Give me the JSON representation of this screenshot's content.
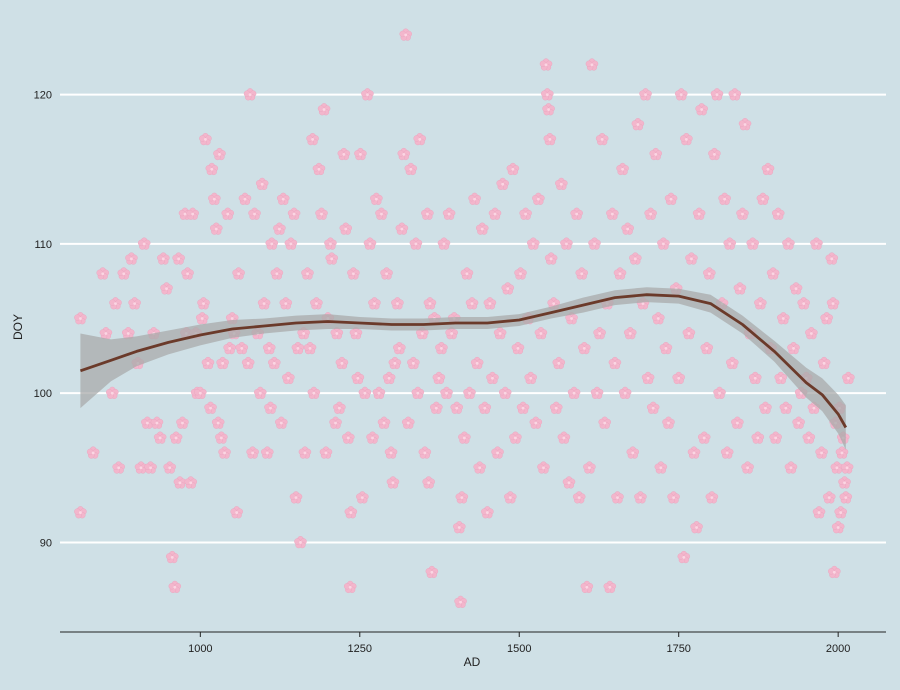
{
  "colors": {
    "background": "#cfe0e6",
    "grid": "#ffffff",
    "points": "#f3b6cc",
    "smooth_line": "#6b3a2a",
    "confidence_band": "#a9abab"
  },
  "icons": {
    "point_marker": "cherry-blossom-icon"
  },
  "chart_data": {
    "type": "scatter",
    "title": "",
    "xlabel": "AD",
    "ylabel": "DOY",
    "xlim": [
      780,
      2075
    ],
    "ylim": [
      84,
      125
    ],
    "x_ticks": [
      1000,
      1250,
      1500,
      1750,
      2000
    ],
    "y_ticks": [
      90,
      100,
      110,
      120
    ],
    "grid": "horizontal-major",
    "legend": "none",
    "points": [
      [
        812,
        92
      ],
      [
        812,
        105
      ],
      [
        832,
        96
      ],
      [
        847,
        108
      ],
      [
        852,
        104
      ],
      [
        862,
        100
      ],
      [
        867,
        106
      ],
      [
        872,
        95
      ],
      [
        880,
        108
      ],
      [
        887,
        104
      ],
      [
        892,
        109
      ],
      [
        897,
        106
      ],
      [
        902,
        102
      ],
      [
        907,
        95
      ],
      [
        912,
        110
      ],
      [
        917,
        98
      ],
      [
        922,
        95
      ],
      [
        927,
        104
      ],
      [
        932,
        98
      ],
      [
        937,
        97
      ],
      [
        942,
        109
      ],
      [
        947,
        107
      ],
      [
        952,
        95
      ],
      [
        956,
        89
      ],
      [
        960,
        87
      ],
      [
        962,
        97
      ],
      [
        966,
        109
      ],
      [
        968,
        94
      ],
      [
        972,
        98
      ],
      [
        976,
        112
      ],
      [
        978,
        104
      ],
      [
        980,
        108
      ],
      [
        985,
        94
      ],
      [
        988,
        112
      ],
      [
        993,
        104
      ],
      [
        995,
        100
      ],
      [
        1000,
        100
      ],
      [
        1003,
        105
      ],
      [
        1005,
        106
      ],
      [
        1008,
        117
      ],
      [
        1012,
        102
      ],
      [
        1016,
        99
      ],
      [
        1018,
        115
      ],
      [
        1022,
        113
      ],
      [
        1025,
        111
      ],
      [
        1028,
        98
      ],
      [
        1030,
        116
      ],
      [
        1033,
        97
      ],
      [
        1035,
        102
      ],
      [
        1038,
        96
      ],
      [
        1043,
        112
      ],
      [
        1046,
        103
      ],
      [
        1050,
        105
      ],
      [
        1053,
        104
      ],
      [
        1057,
        92
      ],
      [
        1060,
        108
      ],
      [
        1065,
        103
      ],
      [
        1070,
        113
      ],
      [
        1075,
        102
      ],
      [
        1078,
        120
      ],
      [
        1082,
        96
      ],
      [
        1085,
        112
      ],
      [
        1090,
        104
      ],
      [
        1094,
        100
      ],
      [
        1097,
        114
      ],
      [
        1100,
        106
      ],
      [
        1105,
        96
      ],
      [
        1108,
        103
      ],
      [
        1110,
        99
      ],
      [
        1112,
        110
      ],
      [
        1116,
        102
      ],
      [
        1120,
        108
      ],
      [
        1124,
        111
      ],
      [
        1127,
        98
      ],
      [
        1130,
        113
      ],
      [
        1134,
        106
      ],
      [
        1138,
        101
      ],
      [
        1142,
        110
      ],
      [
        1147,
        112
      ],
      [
        1150,
        93
      ],
      [
        1153,
        103
      ],
      [
        1157,
        90
      ],
      [
        1162,
        104
      ],
      [
        1164,
        96
      ],
      [
        1168,
        108
      ],
      [
        1172,
        103
      ],
      [
        1176,
        117
      ],
      [
        1178,
        100
      ],
      [
        1182,
        106
      ],
      [
        1186,
        115
      ],
      [
        1190,
        112
      ],
      [
        1194,
        119
      ],
      [
        1197,
        96
      ],
      [
        1200,
        105
      ],
      [
        1204,
        110
      ],
      [
        1206,
        109
      ],
      [
        1212,
        98
      ],
      [
        1214,
        104
      ],
      [
        1218,
        99
      ],
      [
        1222,
        102
      ],
      [
        1225,
        116
      ],
      [
        1228,
        111
      ],
      [
        1232,
        97
      ],
      [
        1235,
        87
      ],
      [
        1236,
        92
      ],
      [
        1240,
        108
      ],
      [
        1244,
        104
      ],
      [
        1247,
        101
      ],
      [
        1251,
        116
      ],
      [
        1254,
        93
      ],
      [
        1258,
        100
      ],
      [
        1262,
        120
      ],
      [
        1266,
        110
      ],
      [
        1270,
        97
      ],
      [
        1273,
        106
      ],
      [
        1276,
        113
      ],
      [
        1280,
        100
      ],
      [
        1284,
        112
      ],
      [
        1288,
        98
      ],
      [
        1292,
        108
      ],
      [
        1296,
        101
      ],
      [
        1299,
        96
      ],
      [
        1302,
        94
      ],
      [
        1305,
        102
      ],
      [
        1309,
        106
      ],
      [
        1312,
        103
      ],
      [
        1316,
        111
      ],
      [
        1319,
        116
      ],
      [
        1322,
        124
      ],
      [
        1326,
        98
      ],
      [
        1330,
        115
      ],
      [
        1334,
        102
      ],
      [
        1338,
        110
      ],
      [
        1341,
        100
      ],
      [
        1344,
        117
      ],
      [
        1348,
        104
      ],
      [
        1352,
        96
      ],
      [
        1356,
        112
      ],
      [
        1358,
        94
      ],
      [
        1360,
        106
      ],
      [
        1363,
        88
      ],
      [
        1367,
        105
      ],
      [
        1370,
        99
      ],
      [
        1374,
        101
      ],
      [
        1378,
        103
      ],
      [
        1382,
        110
      ],
      [
        1386,
        100
      ],
      [
        1390,
        112
      ],
      [
        1394,
        104
      ],
      [
        1398,
        105
      ],
      [
        1402,
        99
      ],
      [
        1406,
        91
      ],
      [
        1408,
        86
      ],
      [
        1410,
        93
      ],
      [
        1414,
        97
      ],
      [
        1418,
        108
      ],
      [
        1422,
        100
      ],
      [
        1426,
        106
      ],
      [
        1430,
        113
      ],
      [
        1434,
        102
      ],
      [
        1438,
        95
      ],
      [
        1442,
        111
      ],
      [
        1446,
        99
      ],
      [
        1450,
        92
      ],
      [
        1454,
        106
      ],
      [
        1458,
        101
      ],
      [
        1462,
        112
      ],
      [
        1466,
        96
      ],
      [
        1470,
        104
      ],
      [
        1474,
        114
      ],
      [
        1478,
        100
      ],
      [
        1482,
        107
      ],
      [
        1486,
        93
      ],
      [
        1490,
        115
      ],
      [
        1494,
        97
      ],
      [
        1498,
        103
      ],
      [
        1502,
        108
      ],
      [
        1506,
        99
      ],
      [
        1510,
        112
      ],
      [
        1514,
        105
      ],
      [
        1518,
        101
      ],
      [
        1522,
        110
      ],
      [
        1526,
        98
      ],
      [
        1530,
        113
      ],
      [
        1534,
        104
      ],
      [
        1538,
        95
      ],
      [
        1542,
        122
      ],
      [
        1544,
        120
      ],
      [
        1546,
        119
      ],
      [
        1548,
        117
      ],
      [
        1550,
        109
      ],
      [
        1554,
        106
      ],
      [
        1558,
        99
      ],
      [
        1562,
        102
      ],
      [
        1566,
        114
      ],
      [
        1570,
        97
      ],
      [
        1574,
        110
      ],
      [
        1578,
        94
      ],
      [
        1582,
        105
      ],
      [
        1586,
        100
      ],
      [
        1590,
        112
      ],
      [
        1594,
        93
      ],
      [
        1598,
        108
      ],
      [
        1602,
        103
      ],
      [
        1606,
        87
      ],
      [
        1610,
        95
      ],
      [
        1614,
        122
      ],
      [
        1618,
        110
      ],
      [
        1622,
        100
      ],
      [
        1626,
        104
      ],
      [
        1630,
        117
      ],
      [
        1634,
        98
      ],
      [
        1638,
        106
      ],
      [
        1642,
        87
      ],
      [
        1646,
        112
      ],
      [
        1650,
        102
      ],
      [
        1654,
        93
      ],
      [
        1658,
        108
      ],
      [
        1662,
        115
      ],
      [
        1666,
        100
      ],
      [
        1670,
        111
      ],
      [
        1674,
        104
      ],
      [
        1678,
        96
      ],
      [
        1682,
        109
      ],
      [
        1686,
        118
      ],
      [
        1690,
        93
      ],
      [
        1694,
        106
      ],
      [
        1698,
        120
      ],
      [
        1702,
        101
      ],
      [
        1706,
        112
      ],
      [
        1710,
        99
      ],
      [
        1714,
        116
      ],
      [
        1718,
        105
      ],
      [
        1722,
        95
      ],
      [
        1726,
        110
      ],
      [
        1730,
        103
      ],
      [
        1734,
        98
      ],
      [
        1738,
        113
      ],
      [
        1742,
        93
      ],
      [
        1746,
        107
      ],
      [
        1750,
        101
      ],
      [
        1754,
        120
      ],
      [
        1758,
        89
      ],
      [
        1762,
        117
      ],
      [
        1766,
        104
      ],
      [
        1770,
        109
      ],
      [
        1774,
        96
      ],
      [
        1778,
        91
      ],
      [
        1782,
        112
      ],
      [
        1786,
        119
      ],
      [
        1790,
        97
      ],
      [
        1794,
        103
      ],
      [
        1798,
        108
      ],
      [
        1802,
        93
      ],
      [
        1806,
        116
      ],
      [
        1810,
        120
      ],
      [
        1814,
        100
      ],
      [
        1818,
        106
      ],
      [
        1822,
        113
      ],
      [
        1826,
        96
      ],
      [
        1830,
        110
      ],
      [
        1834,
        102
      ],
      [
        1838,
        120
      ],
      [
        1842,
        98
      ],
      [
        1846,
        107
      ],
      [
        1850,
        112
      ],
      [
        1854,
        118
      ],
      [
        1858,
        95
      ],
      [
        1862,
        104
      ],
      [
        1866,
        110
      ],
      [
        1870,
        101
      ],
      [
        1874,
        97
      ],
      [
        1878,
        106
      ],
      [
        1882,
        113
      ],
      [
        1886,
        99
      ],
      [
        1890,
        115
      ],
      [
        1894,
        103
      ],
      [
        1898,
        108
      ],
      [
        1902,
        97
      ],
      [
        1906,
        112
      ],
      [
        1910,
        101
      ],
      [
        1914,
        105
      ],
      [
        1918,
        99
      ],
      [
        1922,
        110
      ],
      [
        1926,
        95
      ],
      [
        1930,
        103
      ],
      [
        1934,
        107
      ],
      [
        1938,
        98
      ],
      [
        1942,
        100
      ],
      [
        1946,
        106
      ],
      [
        1950,
        101
      ],
      [
        1954,
        97
      ],
      [
        1958,
        104
      ],
      [
        1962,
        99
      ],
      [
        1966,
        110
      ],
      [
        1970,
        92
      ],
      [
        1974,
        96
      ],
      [
        1978,
        102
      ],
      [
        1982,
        105
      ],
      [
        1986,
        93
      ],
      [
        1990,
        109
      ],
      [
        1992,
        106
      ],
      [
        1994,
        88
      ],
      [
        1996,
        98
      ],
      [
        1998,
        95
      ],
      [
        2000,
        91
      ],
      [
        2002,
        99
      ],
      [
        2004,
        92
      ],
      [
        2006,
        96
      ],
      [
        2008,
        97
      ],
      [
        2010,
        94
      ],
      [
        2012,
        93
      ],
      [
        2014,
        95
      ],
      [
        2016,
        101
      ]
    ],
    "smooth": {
      "x": [
        812,
        860,
        900,
        950,
        1000,
        1050,
        1100,
        1150,
        1200,
        1250,
        1300,
        1350,
        1400,
        1450,
        1500,
        1550,
        1600,
        1650,
        1700,
        1750,
        1800,
        1850,
        1900,
        1950,
        1975,
        2000,
        2012
      ],
      "y": [
        101.5,
        102.2,
        102.8,
        103.4,
        103.9,
        104.3,
        104.5,
        104.7,
        104.8,
        104.7,
        104.6,
        104.6,
        104.7,
        104.7,
        104.9,
        105.4,
        105.9,
        106.4,
        106.6,
        106.5,
        106.0,
        104.6,
        102.8,
        100.7,
        99.9,
        98.6,
        97.7
      ],
      "lower": [
        99.0,
        100.8,
        101.8,
        102.6,
        103.2,
        103.7,
        104.0,
        104.2,
        104.3,
        104.3,
        104.2,
        104.2,
        104.3,
        104.3,
        104.5,
        105.0,
        105.4,
        105.9,
        106.1,
        106.0,
        105.4,
        104.0,
        102.1,
        99.7,
        98.8,
        97.3,
        96.2
      ],
      "upper": [
        104.0,
        103.6,
        103.8,
        104.2,
        104.6,
        104.9,
        105.0,
        105.2,
        105.3,
        105.1,
        105.0,
        105.0,
        105.1,
        105.1,
        105.3,
        105.8,
        106.4,
        106.9,
        107.1,
        107.0,
        106.6,
        105.2,
        103.5,
        101.7,
        101.0,
        99.9,
        99.2
      ]
    }
  }
}
